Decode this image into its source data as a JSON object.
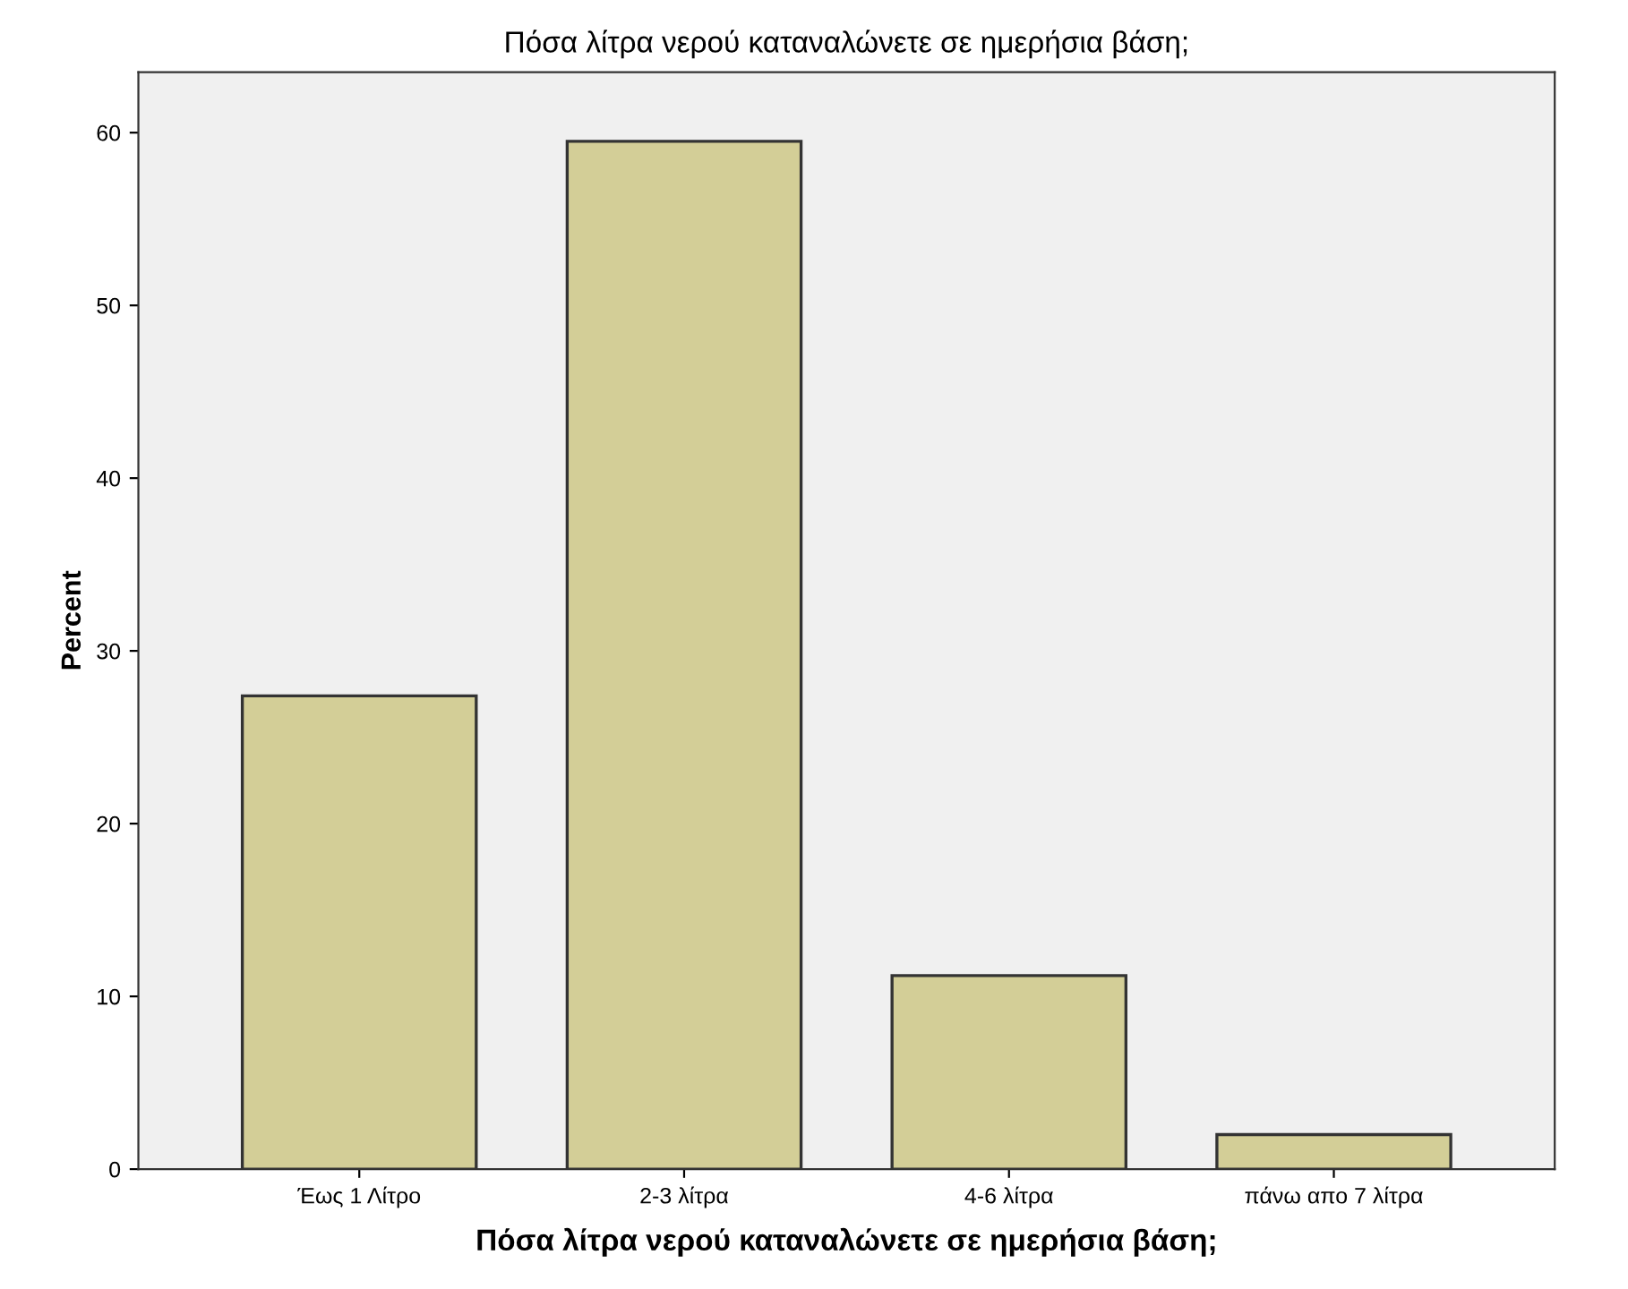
{
  "chart_data": {
    "type": "bar",
    "title": "Πόσα λίτρα νερού καταναλώνετε σε ημερήσια βάση;",
    "xlabel": "Πόσα λίτρα νερού καταναλώνετε σε ημερήσια βάση;",
    "ylabel": "Percent",
    "categories": [
      "Έως 1 Λίτρο",
      "2-3 λίτρα",
      "4-6 λίτρα",
      "πάνω απο 7 λίτρα"
    ],
    "values": [
      27.4,
      59.5,
      11.2,
      2.0
    ],
    "color": "#d3ce97",
    "ylim": [
      0,
      63.5
    ],
    "yticks": [
      0,
      10,
      20,
      30,
      40,
      50,
      60
    ],
    "grid": false,
    "legend": false
  }
}
